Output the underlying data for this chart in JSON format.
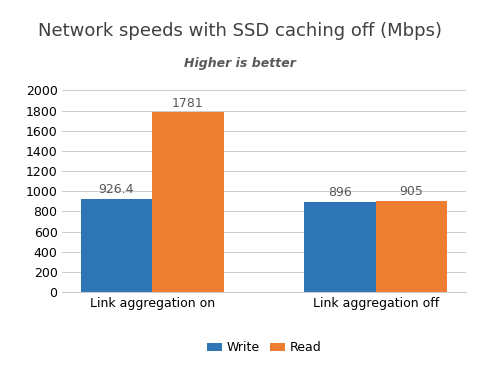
{
  "title": "Network speeds with SSD caching off (Mbps)",
  "subtitle": "Higher is better",
  "categories": [
    "Link aggregation on",
    "Link aggregation off"
  ],
  "series": [
    {
      "label": "Write",
      "values": [
        926.4,
        896
      ],
      "color": "#2E75B6"
    },
    {
      "label": "Read",
      "values": [
        1781,
        905
      ],
      "color": "#ED7D31"
    }
  ],
  "ylim": [
    0,
    2100
  ],
  "yticks": [
    0,
    200,
    400,
    600,
    800,
    1000,
    1200,
    1400,
    1600,
    1800,
    2000
  ],
  "bar_width": 0.32,
  "value_labels": [
    [
      "926.4",
      "896"
    ],
    [
      "1781",
      "905"
    ]
  ],
  "label_fontsize": 9,
  "title_fontsize": 13,
  "subtitle_fontsize": 9,
  "tick_fontsize": 9,
  "legend_fontsize": 9,
  "background_color": "#FFFFFF",
  "grid_color": "#CCCCCC",
  "title_color": "#404040",
  "subtitle_color": "#595959",
  "value_label_color": "#595959"
}
